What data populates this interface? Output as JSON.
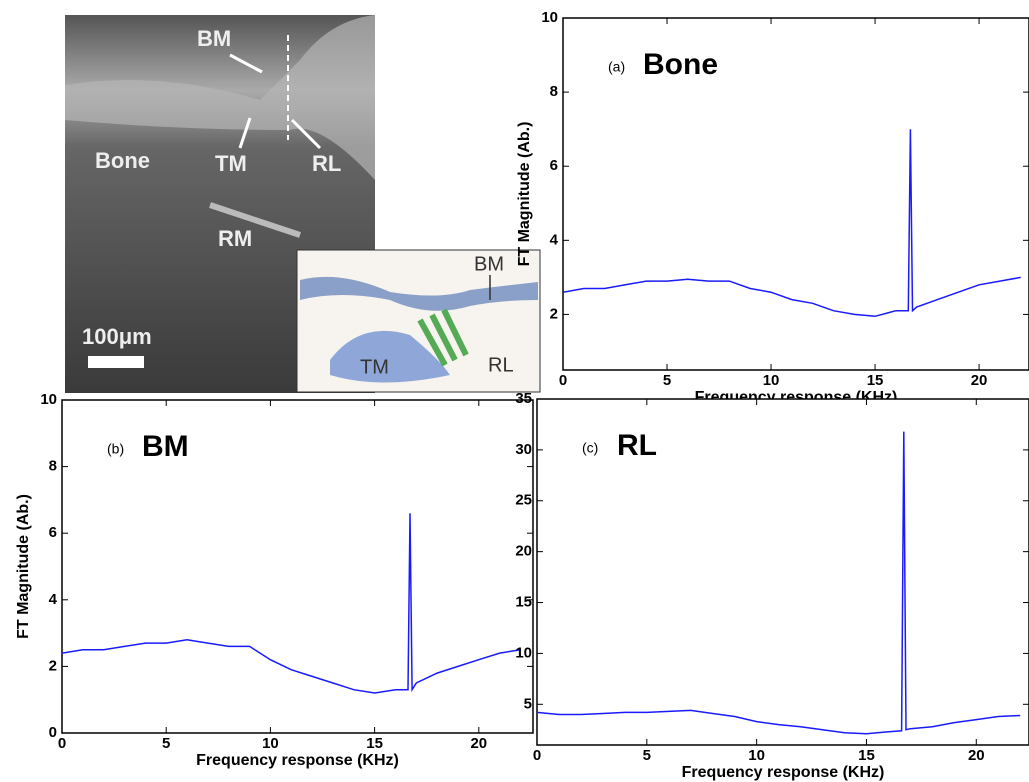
{
  "micrograph": {
    "labels": [
      "BM",
      "TM",
      "RL",
      "Bone",
      "RM",
      "100μm"
    ]
  },
  "inset": {
    "labels": [
      "BM",
      "TM",
      "RL"
    ]
  },
  "chart_data": [
    {
      "type": "line",
      "panel_label": "(a)",
      "title": "Bone",
      "xlabel": "Frequency response (KHz)",
      "ylabel": "FT Magnitude (Ab.)",
      "x": [
        0,
        1,
        2,
        3,
        4,
        5,
        6,
        7,
        8,
        9,
        10,
        11,
        12,
        13,
        14,
        15,
        16,
        16.6,
        16.7,
        16.8,
        17,
        18,
        19,
        20,
        21,
        22
      ],
      "series": [
        {
          "name": "Bone",
          "color": "#1a1aff",
          "values": [
            2.6,
            2.7,
            2.7,
            2.8,
            2.9,
            2.9,
            2.95,
            2.9,
            2.9,
            2.7,
            2.6,
            2.4,
            2.3,
            2.1,
            2.0,
            1.95,
            2.1,
            2.1,
            7,
            2.1,
            2.2,
            2.4,
            2.6,
            2.8,
            2.9,
            3.0
          ]
        }
      ],
      "xlim": [
        0,
        22.4
      ],
      "xticks": [
        0,
        5,
        10,
        15,
        20
      ],
      "ylim": [
        0.5,
        10
      ],
      "yticks": [
        2,
        4,
        6,
        8,
        10
      ]
    },
    {
      "type": "line",
      "panel_label": "(b)",
      "title": "BM",
      "xlabel": "Frequency response (KHz)",
      "ylabel": "FT Magnitude (Ab.)",
      "x": [
        0,
        1,
        2,
        3,
        4,
        5,
        6,
        7,
        8,
        9,
        10,
        11,
        12,
        13,
        14,
        15,
        16,
        16.6,
        16.7,
        16.8,
        17,
        18,
        19,
        20,
        21,
        22
      ],
      "series": [
        {
          "name": "BM",
          "color": "#1a1aff",
          "values": [
            2.4,
            2.5,
            2.5,
            2.6,
            2.7,
            2.7,
            2.8,
            2.7,
            2.6,
            2.6,
            2.2,
            1.9,
            1.7,
            1.5,
            1.3,
            1.2,
            1.3,
            1.3,
            6.6,
            1.3,
            1.5,
            1.8,
            2.0,
            2.2,
            2.4,
            2.5
          ]
        }
      ],
      "xlim": [
        0,
        22.6
      ],
      "xticks": [
        0,
        5,
        10,
        15,
        20
      ],
      "ylim": [
        0,
        10
      ],
      "yticks": [
        0,
        2,
        4,
        6,
        8,
        10
      ]
    },
    {
      "type": "line",
      "panel_label": "(c)",
      "title": "RL",
      "xlabel": "Frequency response (KHz)",
      "x": [
        0,
        1,
        2,
        3,
        4,
        5,
        6,
        7,
        8,
        9,
        10,
        11,
        12,
        13,
        14,
        15,
        16,
        16.6,
        16.7,
        16.8,
        17,
        18,
        19,
        20,
        21,
        22
      ],
      "series": [
        {
          "name": "RL",
          "color": "#1a1aff",
          "values": [
            4.2,
            4.0,
            4.0,
            4.1,
            4.2,
            4.2,
            4.3,
            4.4,
            4.1,
            3.8,
            3.3,
            3.0,
            2.8,
            2.5,
            2.2,
            2.1,
            2.3,
            2.4,
            31.8,
            2.5,
            2.6,
            2.8,
            3.2,
            3.5,
            3.8,
            3.9
          ]
        }
      ],
      "xlim": [
        0,
        22.4
      ],
      "xticks": [
        0,
        5,
        10,
        15,
        20
      ],
      "ylim": [
        1,
        35
      ],
      "yticks": [
        5,
        10,
        15,
        20,
        25,
        30,
        35
      ]
    }
  ]
}
